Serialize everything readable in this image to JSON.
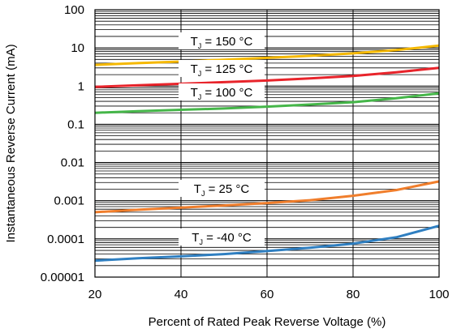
{
  "chart_data": {
    "type": "line",
    "title": "",
    "xlabel": "Percent of Rated Peak Reverse Voltage (%)",
    "ylabel": "Instantaneous Reverse Current (mA)",
    "xlim": [
      20,
      100
    ],
    "ylim": [
      1e-05,
      100
    ],
    "yscale": "log",
    "grid": true,
    "x_ticks": [
      20,
      40,
      60,
      80,
      100
    ],
    "x_tick_labels": [
      "20",
      "40",
      "60",
      "80",
      "100"
    ],
    "y_ticks": [
      1e-05,
      0.0001,
      0.001,
      0.01,
      0.1,
      1,
      10,
      100
    ],
    "y_tick_labels": [
      "0.00001",
      "0.0001",
      "0.001",
      "0.01",
      "0.1",
      "1",
      "10",
      "100"
    ],
    "legend": "none",
    "x": [
      20,
      30,
      40,
      50,
      60,
      70,
      80,
      90,
      100
    ],
    "series": [
      {
        "label_main": "T",
        "label_sub": "J",
        "label_rest": " = 150 °C",
        "color": "#f5b800",
        "values": [
          3.6,
          4.0,
          4.4,
          4.9,
          5.5,
          6.2,
          7.2,
          8.8,
          11.5
        ]
      },
      {
        "label_main": "T",
        "label_sub": "J",
        "label_rest": " = 125 °C",
        "color": "#e8242b",
        "values": [
          0.95,
          1.05,
          1.15,
          1.27,
          1.4,
          1.6,
          1.85,
          2.3,
          3.0
        ]
      },
      {
        "label_main": "T",
        "label_sub": "J",
        "label_rest": " = 100 °C",
        "color": "#45b649",
        "values": [
          0.2,
          0.22,
          0.24,
          0.26,
          0.29,
          0.33,
          0.38,
          0.48,
          0.65
        ]
      },
      {
        "label_main": "T",
        "label_sub": "J",
        "label_rest": " = 25 °C",
        "color": "#f07e2c",
        "values": [
          0.0005,
          0.00058,
          0.00066,
          0.00075,
          0.00087,
          0.00103,
          0.00135,
          0.0019,
          0.0032
        ]
      },
      {
        "label_main": "T",
        "label_sub": "J",
        "label_rest": " = -40 °C",
        "color": "#2f7fc1",
        "values": [
          2.7e-05,
          3.1e-05,
          3.5e-05,
          4e-05,
          4.8e-05,
          5.9e-05,
          7.5e-05,
          0.00011,
          0.00022
        ]
      }
    ]
  }
}
